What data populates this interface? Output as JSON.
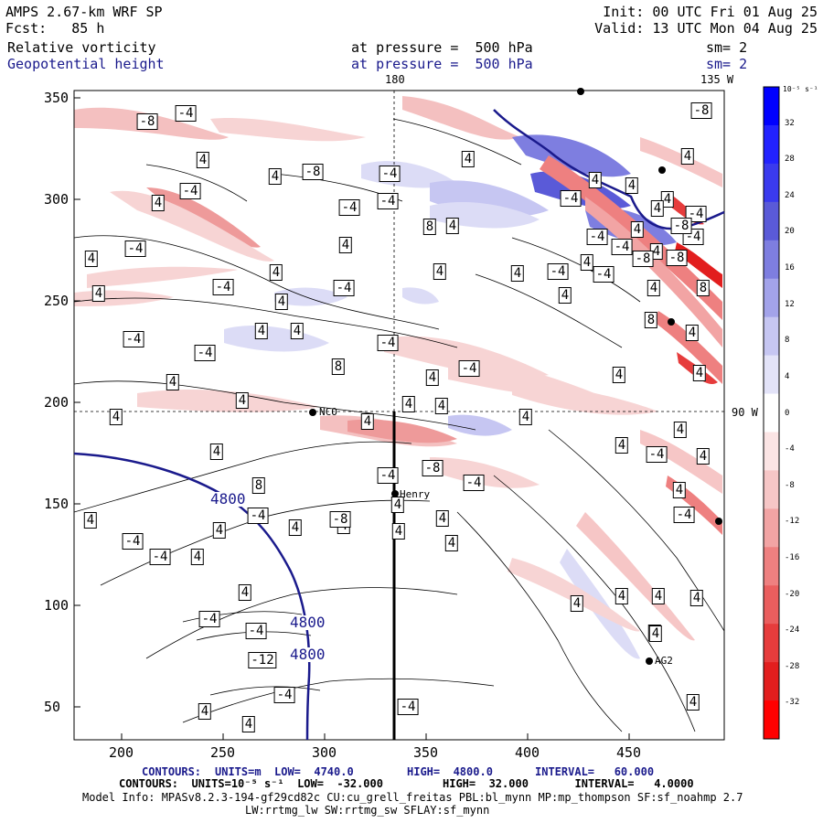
{
  "header": {
    "left_line1": "AMPS 2.67-km WRF SP",
    "left_line2": "Fcst:   85 h",
    "right_line1": "Init: 00 UTC Fri 01 Aug 25",
    "right_line2": "Valid: 13 UTC Mon 04 Aug 25",
    "field1_name": "Relative vorticity",
    "field1_level": "at pressure =  500 hPa",
    "field1_sm": "sm= 2",
    "field2_name": "Geopotential height",
    "field2_level": "at pressure =  500 hPa",
    "field2_sm": "sm= 2"
  },
  "map": {
    "x_ticks": [
      "200",
      "250",
      "300",
      "350",
      "400",
      "450"
    ],
    "y_ticks": [
      "350",
      "300",
      "250",
      "200",
      "150",
      "100",
      "50"
    ],
    "meridian_labels": {
      "lon180": "180",
      "lon135w": "135 W",
      "lat90s": "90 W"
    },
    "stations": [
      {
        "name": "NCO"
      },
      {
        "name": "Henry"
      },
      {
        "name": "AG2"
      },
      {
        "name": "?"
      }
    ],
    "vort_labels": [
      "-8",
      "-4",
      "4",
      "-4",
      "4",
      "4",
      "-8",
      "-4",
      "4",
      "-4",
      "-4",
      "-4",
      "4",
      "4",
      "-4",
      "4",
      "4",
      "-4",
      "8",
      "4",
      "4",
      "4",
      "-4",
      "4",
      "4",
      "-4",
      "8",
      "4",
      "4",
      "-4",
      "-4",
      "4",
      "4",
      "4",
      "4",
      "8",
      "-4",
      "-8",
      "-4",
      "4",
      "4",
      "4",
      "4",
      "-4",
      "4",
      "4",
      "4",
      "-4",
      "4",
      "4",
      "-4",
      "4",
      "4",
      "4",
      "4",
      "4",
      "4",
      "4",
      "4",
      "4",
      "4",
      "4",
      "4",
      "4",
      "-4",
      "4",
      "4",
      "-4",
      "4",
      "-4",
      "4",
      "-4",
      "-4",
      "-12",
      "-4",
      "4",
      "4",
      "-4",
      "-8",
      "-8",
      "4",
      "8",
      "4",
      "4",
      "4",
      "4",
      "4",
      "4",
      "4",
      "4",
      "4",
      "4",
      "-4",
      "-8",
      "-4",
      "8",
      "4",
      "-8",
      "-4",
      "-4",
      "-4",
      "-8",
      "-4"
    ],
    "height_labels": [
      "4800",
      "4800",
      "4800"
    ]
  },
  "colorbar": {
    "unit": "10⁻⁵ s⁻¹",
    "ticks": [
      "32",
      "28",
      "24",
      "20",
      "16",
      "12",
      "8",
      "4",
      "0",
      "-4",
      "-8",
      "-12",
      "-16",
      "-20",
      "-24",
      "-28",
      "-32"
    ],
    "colors": [
      "#0000ff",
      "#2222ff",
      "#3a3aee",
      "#5a5ad8",
      "#7e7ee0",
      "#a3a3ea",
      "#c6c6f2",
      "#e3e3f8",
      "#ffffff",
      "#fbe4e4",
      "#f6c6c6",
      "#f2a4a4",
      "#ee8080",
      "#ea5e5e",
      "#e63c3c",
      "#e21e1e",
      "#ff0000"
    ]
  },
  "footer": {
    "line1_label": "CONTOURS:",
    "line1_units": "UNITS=m",
    "line1_low": "LOW=  4740.0",
    "line1_high": "HIGH=  4800.0",
    "line1_interval": "INTERVAL=   60.000",
    "line2": "CONTOURS:  UNITS=10⁻⁵ s⁻¹  LOW=  -32.000         HIGH=  32.000       INTERVAL=   4.0000",
    "line3": "Model Info: MPASv8.2.3-194-gf29cd82c CU:cu_grell_freitas PBL:bl_mynn MP:mp_thompson SF:sf_noahmp 2.7",
    "line4": "LW:rrtmg_lw SW:rrtmg_sw SFLAY:sf_mynn"
  }
}
